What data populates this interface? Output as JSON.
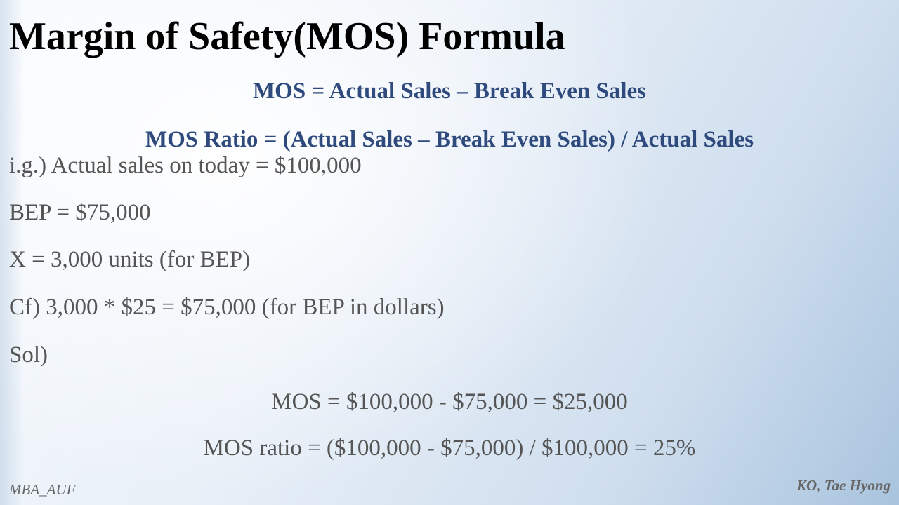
{
  "slide": {
    "title": "Margin of Safety(MOS) Formula",
    "formulas": [
      "MOS  = Actual Sales – Break Even Sales",
      "MOS Ratio = (Actual Sales – Break Even Sales) / Actual Sales"
    ],
    "example_lines": [
      "i.g.) Actual sales on today = $100,000",
      "BEP = $75,000",
      "X = 3,000 units (for BEP)",
      "Cf) 3,000 * $25 = $75,000 (for BEP in dollars)",
      "Sol)"
    ],
    "solution_lines": [
      "MOS = $100,000 - $75,000 = $25,000",
      "MOS ratio = ($100,000 - $75,000) /  $100,000 = 25%"
    ],
    "footer_left": "MBA_AUF",
    "footer_right": "KO, Tae Hyong"
  },
  "colors": {
    "title": "#000000",
    "formula": "#2f4a7d",
    "body_text": "#555555",
    "footer": "#666666"
  }
}
